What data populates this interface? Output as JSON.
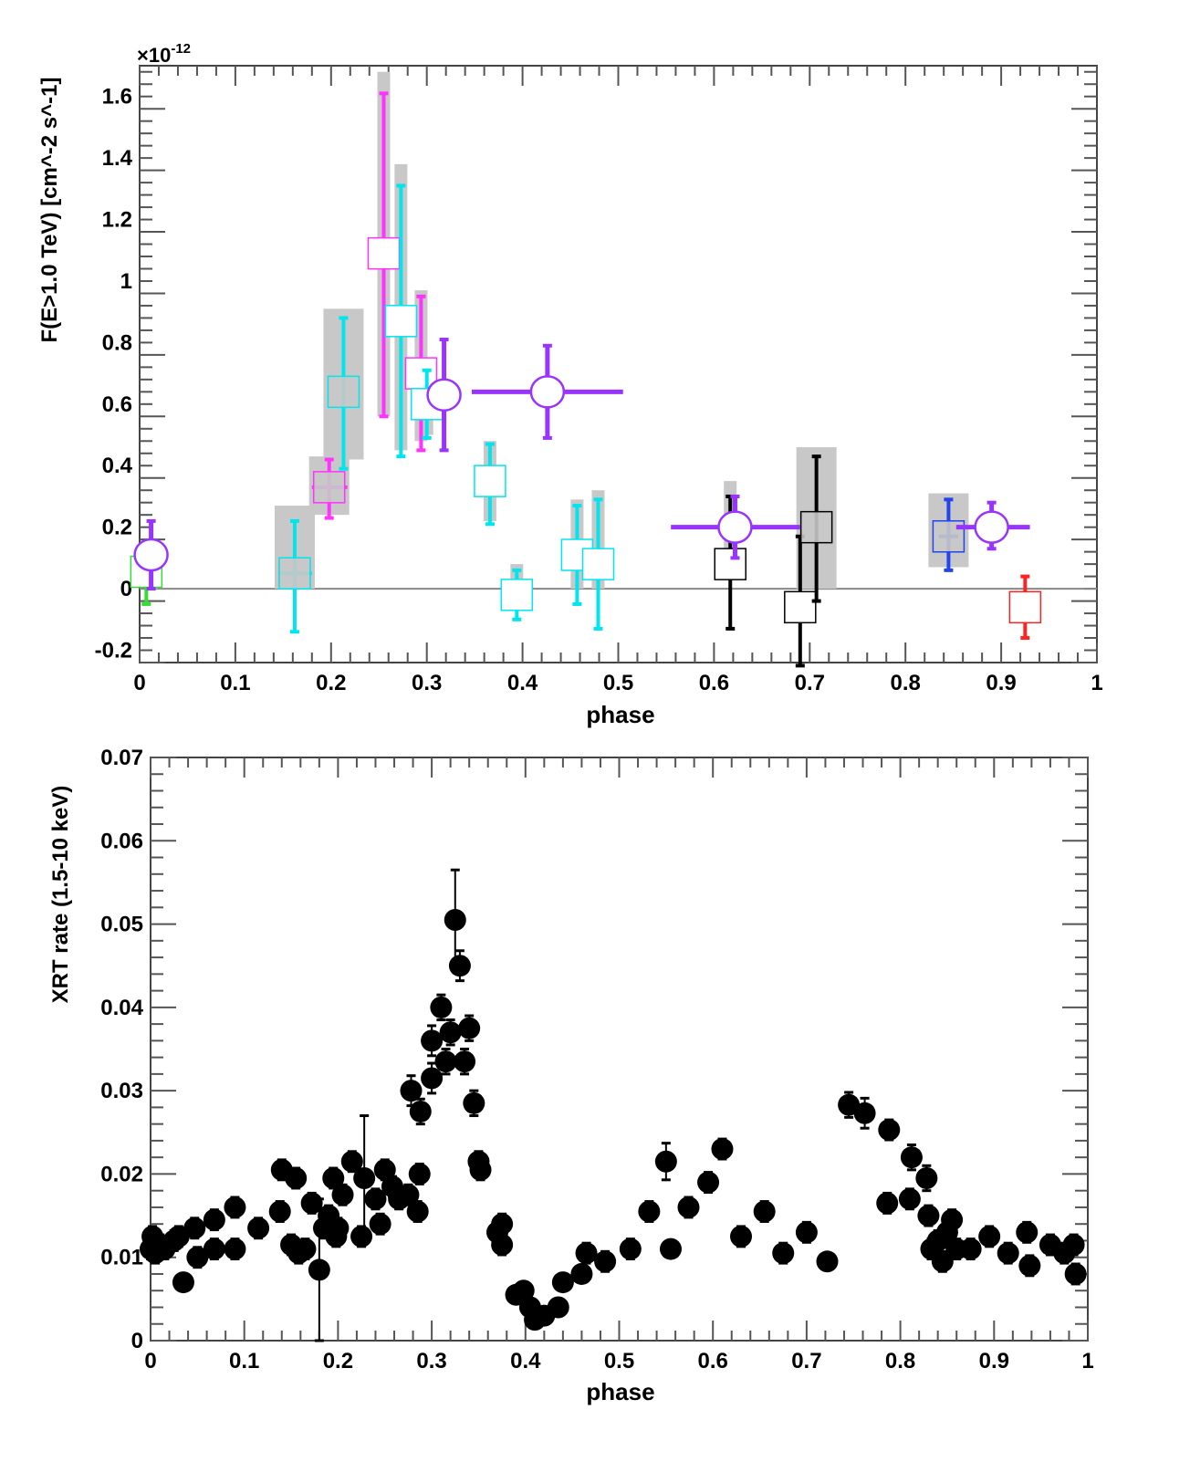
{
  "chart_data": [
    {
      "type": "scatter",
      "title": "",
      "xlabel": "phase",
      "ylabel": "F(E>1.0 TeV) [cm^-2 s^-1]",
      "yscale_label": "×10^-12",
      "xlim": [
        0,
        1
      ],
      "ylim": [
        -0.24,
        1.7
      ],
      "xticks": [
        "0",
        "0.1",
        "0.2",
        "0.3",
        "0.4",
        "0.5",
        "0.6",
        "0.7",
        "0.8",
        "0.9",
        "1"
      ],
      "yticks": [
        "-0.2",
        "0",
        "0.2",
        "0.4",
        "0.6",
        "0.8",
        "1",
        "1.2",
        "1.4",
        "1.6"
      ],
      "colors": {
        "green": "#33dd33",
        "purple": "#9933ff",
        "cyan": "#00e5ee",
        "magenta": "#ff33ff",
        "black": "#000000",
        "blue": "#2244ee",
        "red": "#ff2222",
        "sys": "#c8c8c8"
      },
      "points": [
        {
          "x": 0.007,
          "y": 0.055,
          "ylo": -0.05,
          "yhi": 0.15,
          "marker": "square",
          "color": "green"
        },
        {
          "x": 0.012,
          "y": 0.11,
          "ylo": 0.0,
          "yhi": 0.22,
          "marker": "circle",
          "color": "purple",
          "sys": [
            0.0,
            0.16
          ]
        },
        {
          "x": 0.162,
          "y": 0.05,
          "ylo": -0.14,
          "yhi": 0.22,
          "xlo": 0.145,
          "xhi": 0.18,
          "marker": "square",
          "color": "cyan",
          "sys": [
            0.0,
            0.27
          ],
          "filled": true
        },
        {
          "x": 0.198,
          "y": 0.33,
          "ylo": 0.23,
          "yhi": 0.42,
          "xlo": 0.18,
          "xhi": 0.217,
          "marker": "square",
          "color": "magenta",
          "sys": [
            0.24,
            0.43
          ],
          "filled": true
        },
        {
          "x": 0.213,
          "y": 0.64,
          "ylo": 0.39,
          "yhi": 0.88,
          "marker": "square",
          "color": "cyan",
          "sys": [
            0.42,
            0.91
          ],
          "filled": true
        },
        {
          "x": 0.255,
          "y": 1.09,
          "ylo": 0.56,
          "yhi": 1.61,
          "marker": "square",
          "color": "magenta",
          "sys": [
            0.56,
            1.68
          ]
        },
        {
          "x": 0.273,
          "y": 0.87,
          "ylo": 0.43,
          "yhi": 1.31,
          "marker": "square",
          "color": "cyan",
          "sys": [
            0.45,
            1.38
          ]
        },
        {
          "x": 0.294,
          "y": 0.7,
          "ylo": 0.45,
          "yhi": 0.95,
          "marker": "square",
          "color": "magenta",
          "sys": [
            0.48,
            0.97
          ]
        },
        {
          "x": 0.3,
          "y": 0.6,
          "ylo": 0.49,
          "yhi": 0.71,
          "xlo": 0.29,
          "xhi": 0.322,
          "marker": "square",
          "color": "cyan",
          "sys": [
            0.5,
            0.72
          ]
        },
        {
          "x": 0.318,
          "y": 0.63,
          "ylo": 0.45,
          "yhi": 0.81,
          "marker": "circle",
          "color": "purple"
        },
        {
          "x": 0.366,
          "y": 0.35,
          "ylo": 0.21,
          "yhi": 0.47,
          "marker": "square",
          "color": "cyan",
          "sys": [
            0.22,
            0.48
          ]
        },
        {
          "x": 0.426,
          "y": 0.64,
          "ylo": 0.49,
          "yhi": 0.79,
          "xlo": 0.347,
          "xhi": 0.505,
          "marker": "circle",
          "color": "purple"
        },
        {
          "x": 0.394,
          "y": -0.02,
          "ylo": -0.1,
          "yhi": 0.06,
          "marker": "square",
          "color": "cyan",
          "sys": [
            0.0,
            0.08
          ]
        },
        {
          "x": 0.457,
          "y": 0.11,
          "ylo": -0.05,
          "yhi": 0.27,
          "marker": "square",
          "color": "cyan",
          "sys": [
            0.0,
            0.29
          ]
        },
        {
          "x": 0.479,
          "y": 0.08,
          "ylo": -0.13,
          "yhi": 0.29,
          "marker": "square",
          "color": "cyan",
          "sys": [
            0.0,
            0.32
          ]
        },
        {
          "x": 0.617,
          "y": 0.08,
          "ylo": -0.13,
          "yhi": 0.3,
          "marker": "square",
          "color": "black",
          "sys": [
            0.03,
            0.35
          ]
        },
        {
          "x": 0.622,
          "y": 0.2,
          "ylo": 0.1,
          "yhi": 0.3,
          "xlo": 0.555,
          "xhi": 0.69,
          "marker": "circle",
          "color": "purple"
        },
        {
          "x": 0.69,
          "y": -0.06,
          "ylo": -0.25,
          "yhi": 0.17,
          "marker": "square",
          "color": "black"
        },
        {
          "x": 0.707,
          "y": 0.2,
          "ylo": -0.04,
          "yhi": 0.43,
          "marker": "square",
          "color": "black",
          "sys": [
            0.0,
            0.46
          ],
          "filled": true
        },
        {
          "x": 0.845,
          "y": 0.17,
          "ylo": 0.06,
          "yhi": 0.29,
          "xlo": 0.835,
          "xhi": 0.855,
          "marker": "square",
          "color": "blue",
          "sys": [
            0.07,
            0.31
          ],
          "filled": true
        },
        {
          "x": 0.89,
          "y": 0.2,
          "ylo": 0.13,
          "yhi": 0.28,
          "xlo": 0.853,
          "xhi": 0.93,
          "marker": "circle",
          "color": "purple"
        },
        {
          "x": 0.925,
          "y": -0.06,
          "ylo": -0.16,
          "yhi": 0.04,
          "marker": "square",
          "color": "red"
        }
      ]
    },
    {
      "type": "scatter",
      "title": "",
      "xlabel": "phase",
      "ylabel": "XRT rate (1.5-10 keV)",
      "xlim": [
        0,
        1
      ],
      "ylim": [
        0,
        0.07
      ],
      "xticks": [
        "0",
        "0.1",
        "0.2",
        "0.3",
        "0.4",
        "0.5",
        "0.6",
        "0.7",
        "0.8",
        "0.9",
        "1"
      ],
      "yticks": [
        "0",
        "0.01",
        "0.02",
        "0.03",
        "0.04",
        "0.05",
        "0.06",
        "0.07"
      ],
      "points": [
        [
          0.0,
          0.011,
          0.0012
        ],
        [
          0.002,
          0.0125,
          0.0012
        ],
        [
          0.005,
          0.0105,
          0.0012
        ],
        [
          0.01,
          0.0115,
          0.0012
        ],
        [
          0.015,
          0.011,
          0.0012
        ],
        [
          0.025,
          0.012,
          0.0012
        ],
        [
          0.03,
          0.0125,
          0.0012
        ],
        [
          0.035,
          0.007,
          0.0008
        ],
        [
          0.047,
          0.0135,
          0.0012
        ],
        [
          0.05,
          0.01,
          0.0012
        ],
        [
          0.068,
          0.0145,
          0.0012
        ],
        [
          0.068,
          0.011,
          0.0012
        ],
        [
          0.09,
          0.016,
          0.0012
        ],
        [
          0.09,
          0.011,
          0.0012
        ],
        [
          0.115,
          0.0135,
          0.0012
        ],
        [
          0.138,
          0.0155,
          0.0012
        ],
        [
          0.14,
          0.0205,
          0.0012
        ],
        [
          0.15,
          0.0115,
          0.0012
        ],
        [
          0.155,
          0.0195,
          0.0012
        ],
        [
          0.158,
          0.0105,
          0.0012
        ],
        [
          0.165,
          0.011,
          0.0012
        ],
        [
          0.172,
          0.0165,
          0.0012
        ],
        [
          0.18,
          0.0085,
          0.0085
        ],
        [
          0.185,
          0.0135,
          0.0012
        ],
        [
          0.19,
          0.015,
          0.0012
        ],
        [
          0.195,
          0.0195,
          0.0012
        ],
        [
          0.198,
          0.0125,
          0.0012
        ],
        [
          0.2,
          0.0135,
          0.0012
        ],
        [
          0.205,
          0.0175,
          0.0012
        ],
        [
          0.215,
          0.0215,
          0.0012
        ],
        [
          0.225,
          0.0125,
          0.0012
        ],
        [
          0.228,
          0.0195,
          0.0075
        ],
        [
          0.24,
          0.017,
          0.0012
        ],
        [
          0.245,
          0.014,
          0.0012
        ],
        [
          0.25,
          0.0205,
          0.0012
        ],
        [
          0.258,
          0.0185,
          0.0012
        ],
        [
          0.265,
          0.017,
          0.0012
        ],
        [
          0.275,
          0.0175,
          0.0012
        ],
        [
          0.285,
          0.0155,
          0.0012
        ],
        [
          0.287,
          0.02,
          0.0012
        ],
        [
          0.278,
          0.03,
          0.0018
        ],
        [
          0.288,
          0.0275,
          0.0015
        ],
        [
          0.3,
          0.0315,
          0.0018
        ],
        [
          0.3,
          0.036,
          0.0018
        ],
        [
          0.31,
          0.04,
          0.0015
        ],
        [
          0.315,
          0.0335,
          0.0015
        ],
        [
          0.325,
          0.0505,
          0.006
        ],
        [
          0.33,
          0.045,
          0.0018
        ],
        [
          0.32,
          0.037,
          0.0015
        ],
        [
          0.335,
          0.0335,
          0.0015
        ],
        [
          0.34,
          0.0375,
          0.0015
        ],
        [
          0.345,
          0.0285,
          0.0015
        ],
        [
          0.35,
          0.0215,
          0.0012
        ],
        [
          0.352,
          0.0205,
          0.0012
        ],
        [
          0.37,
          0.013,
          0.0012
        ],
        [
          0.375,
          0.014,
          0.0012
        ],
        [
          0.375,
          0.0115,
          0.0012
        ],
        [
          0.39,
          0.0055,
          0.0008
        ],
        [
          0.398,
          0.006,
          0.0008
        ],
        [
          0.405,
          0.004,
          0.0008
        ],
        [
          0.41,
          0.0025,
          0.0006
        ],
        [
          0.42,
          0.003,
          0.0006
        ],
        [
          0.435,
          0.004,
          0.0008
        ],
        [
          0.44,
          0.007,
          0.0008
        ],
        [
          0.46,
          0.008,
          0.0008
        ],
        [
          0.465,
          0.0105,
          0.0012
        ],
        [
          0.485,
          0.0095,
          0.0012
        ],
        [
          0.512,
          0.011,
          0.0012
        ],
        [
          0.532,
          0.0155,
          0.0012
        ],
        [
          0.55,
          0.0215,
          0.0022
        ],
        [
          0.555,
          0.011,
          0.0008
        ],
        [
          0.574,
          0.016,
          0.0012
        ],
        [
          0.595,
          0.019,
          0.0012
        ],
        [
          0.61,
          0.023,
          0.0012
        ],
        [
          0.63,
          0.0125,
          0.0012
        ],
        [
          0.655,
          0.0155,
          0.0012
        ],
        [
          0.675,
          0.0105,
          0.0012
        ],
        [
          0.7,
          0.013,
          0.0012
        ],
        [
          0.722,
          0.0095,
          0.0008
        ],
        [
          0.745,
          0.0283,
          0.0015
        ],
        [
          0.762,
          0.0273,
          0.0018
        ],
        [
          0.788,
          0.0253,
          0.0012
        ],
        [
          0.786,
          0.0165,
          0.0012
        ],
        [
          0.81,
          0.017,
          0.0012
        ],
        [
          0.812,
          0.022,
          0.0015
        ],
        [
          0.828,
          0.0195,
          0.0015
        ],
        [
          0.83,
          0.015,
          0.0012
        ],
        [
          0.833,
          0.011,
          0.0012
        ],
        [
          0.84,
          0.012,
          0.0012
        ],
        [
          0.845,
          0.0095,
          0.0012
        ],
        [
          0.85,
          0.013,
          0.0012
        ],
        [
          0.855,
          0.0145,
          0.0012
        ],
        [
          0.86,
          0.011,
          0.0012
        ],
        [
          0.875,
          0.011,
          0.0012
        ],
        [
          0.895,
          0.0125,
          0.0012
        ],
        [
          0.915,
          0.0105,
          0.0012
        ],
        [
          0.935,
          0.013,
          0.0012
        ],
        [
          0.938,
          0.009,
          0.0012
        ],
        [
          0.96,
          0.0115,
          0.0012
        ],
        [
          0.975,
          0.0105,
          0.0012
        ],
        [
          0.985,
          0.0115,
          0.0012
        ],
        [
          0.987,
          0.008,
          0.0012
        ]
      ]
    }
  ]
}
